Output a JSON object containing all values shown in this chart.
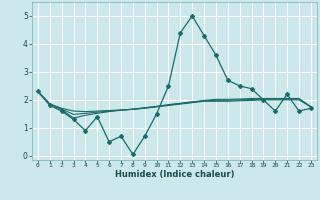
{
  "xlabel": "Humidex (Indice chaleur)",
  "background_color": "#cce8ea",
  "line_color": "#1a6b6b",
  "ylim": [
    -0.15,
    5.5
  ],
  "xlim": [
    -0.5,
    23.5
  ],
  "yticks": [
    0,
    1,
    2,
    3,
    4,
    5
  ],
  "main_line": [
    2.3,
    1.8,
    1.6,
    1.3,
    0.9,
    1.4,
    0.5,
    0.7,
    0.05,
    0.7,
    1.5,
    2.5,
    4.4,
    5.0,
    4.3,
    3.6,
    2.7,
    2.5,
    2.4,
    2.0,
    1.6,
    2.2,
    1.6,
    1.7
  ],
  "line2": [
    2.3,
    1.85,
    1.7,
    1.6,
    1.58,
    1.6,
    1.62,
    1.64,
    1.66,
    1.7,
    1.75,
    1.8,
    1.85,
    1.9,
    1.95,
    1.95,
    1.95,
    1.97,
    1.98,
    2.0,
    2.0,
    2.0,
    2.0,
    1.75
  ],
  "line3": [
    2.3,
    1.85,
    1.65,
    1.35,
    1.45,
    1.52,
    1.58,
    1.63,
    1.67,
    1.72,
    1.77,
    1.83,
    1.88,
    1.93,
    1.98,
    2.02,
    2.02,
    2.03,
    2.05,
    2.05,
    2.05,
    2.05,
    2.05,
    1.75
  ],
  "line4": [
    2.3,
    1.85,
    1.67,
    1.48,
    1.52,
    1.56,
    1.6,
    1.635,
    1.665,
    1.71,
    1.76,
    1.815,
    1.865,
    1.915,
    1.965,
    1.985,
    1.985,
    2.0,
    2.015,
    2.025,
    2.025,
    2.025,
    2.025,
    1.75
  ]
}
